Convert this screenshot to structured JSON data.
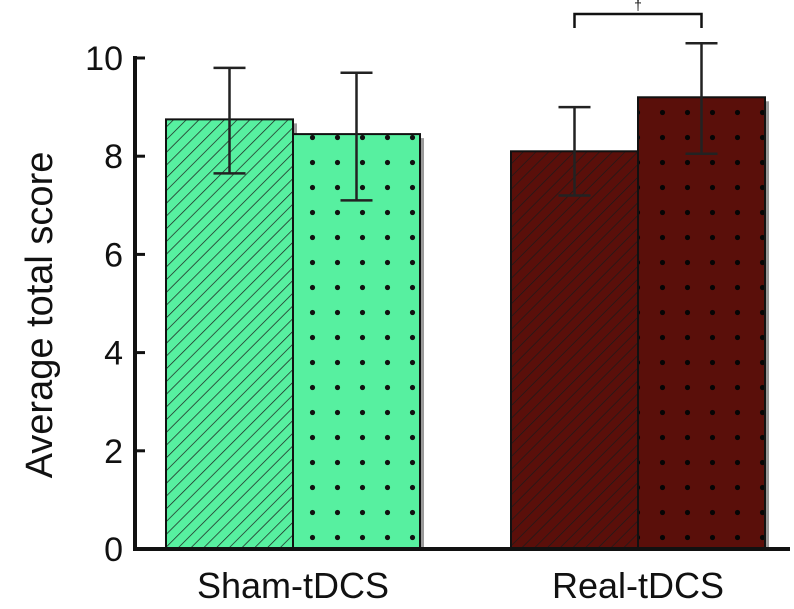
{
  "chart_data": {
    "type": "bar",
    "categories": [
      "Sham-tDCS",
      "Real-tDCS"
    ],
    "ylabel": "Average total score",
    "ylim": [
      0,
      10
    ],
    "yticks": [
      0,
      2,
      4,
      6,
      8,
      10
    ],
    "grid": false,
    "legend": "none",
    "bars": [
      {
        "category": "Sham-tDCS",
        "pattern": "hatch",
        "color": "#57f0a0",
        "value": 8.75,
        "err_low": 7.65,
        "err_high": 9.8
      },
      {
        "category": "Sham-tDCS",
        "pattern": "dots",
        "color": "#57f0a0",
        "value": 8.45,
        "err_low": 7.1,
        "err_high": 9.7
      },
      {
        "category": "Real-tDCS",
        "pattern": "hatch",
        "color": "#5a0f0a",
        "value": 8.1,
        "err_low": 7.2,
        "err_high": 9.0
      },
      {
        "category": "Real-tDCS",
        "pattern": "dots",
        "color": "#5a0f0a",
        "value": 9.2,
        "err_low": 8.05,
        "err_high": 10.3
      }
    ],
    "significance": {
      "category": "Real-tDCS",
      "label": "†"
    }
  }
}
